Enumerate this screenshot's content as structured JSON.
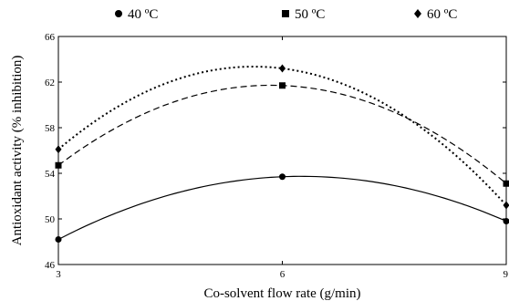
{
  "chart_data": {
    "type": "line",
    "xlabel": "Co-solvent flow rate (g/min)",
    "ylabel": "Antioxidant activity  (% inhibition)",
    "x": [
      3,
      6,
      9
    ],
    "xticks": [
      "3",
      "6",
      "9"
    ],
    "yticks": [
      "46",
      "50",
      "54",
      "58",
      "62",
      "66"
    ],
    "xlim": [
      3,
      9
    ],
    "ylim": [
      46,
      66
    ],
    "grid": false,
    "legend_position": "top",
    "series": [
      {
        "name": "40 ºC",
        "marker": "circle",
        "line_style": "solid",
        "values": [
          48.2,
          53.7,
          49.8
        ]
      },
      {
        "name": "50 ºC",
        "marker": "square",
        "line_style": "dashed",
        "values": [
          54.7,
          61.7,
          53.1
        ]
      },
      {
        "name": "60 ºC",
        "marker": "diamond",
        "line_style": "dotted",
        "values": [
          56.1,
          63.2,
          51.2
        ]
      }
    ]
  }
}
